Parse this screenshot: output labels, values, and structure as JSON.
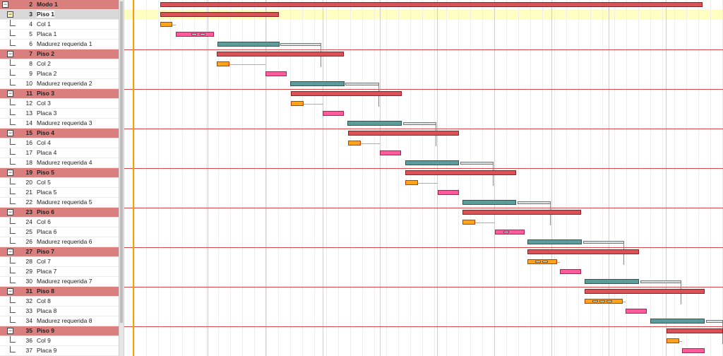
{
  "tasks": [
    {
      "id": "2",
      "name": "Modo 1",
      "type": "summary",
      "level": 0
    },
    {
      "id": "3",
      "name": "Piso 1",
      "type": "summary",
      "level": 1,
      "selected": true
    },
    {
      "id": "4",
      "name": "Col 1",
      "type": "col"
    },
    {
      "id": "5",
      "name": "Placa 1",
      "type": "placa"
    },
    {
      "id": "6",
      "name": "Madurez requerida 1",
      "type": "mad"
    },
    {
      "id": "7",
      "name": "Piso 2",
      "type": "summary",
      "level": 1
    },
    {
      "id": "8",
      "name": "Col 2",
      "type": "col"
    },
    {
      "id": "9",
      "name": "Placa 2",
      "type": "placa"
    },
    {
      "id": "10",
      "name": "Madurez requerida 2",
      "type": "mad"
    },
    {
      "id": "11",
      "name": "Piso 3",
      "type": "summary",
      "level": 1
    },
    {
      "id": "12",
      "name": "Col 3",
      "type": "col"
    },
    {
      "id": "13",
      "name": "Placa 3",
      "type": "placa"
    },
    {
      "id": "14",
      "name": "Madurez requerida 3",
      "type": "mad"
    },
    {
      "id": "15",
      "name": "Piso 4",
      "type": "summary",
      "level": 1
    },
    {
      "id": "16",
      "name": "Col 4",
      "type": "col"
    },
    {
      "id": "17",
      "name": "Placa 4",
      "type": "placa"
    },
    {
      "id": "18",
      "name": "Madurez requerida 4",
      "type": "mad"
    },
    {
      "id": "19",
      "name": "Piso 5",
      "type": "summary",
      "level": 1
    },
    {
      "id": "20",
      "name": "Col 5",
      "type": "col"
    },
    {
      "id": "21",
      "name": "Placa 5",
      "type": "placa"
    },
    {
      "id": "22",
      "name": "Madurez requerida 5",
      "type": "mad"
    },
    {
      "id": "23",
      "name": "Piso 6",
      "type": "summary",
      "level": 1
    },
    {
      "id": "24",
      "name": "Col 6",
      "type": "col"
    },
    {
      "id": "25",
      "name": "Placa 6",
      "type": "placa"
    },
    {
      "id": "26",
      "name": "Madurez requerida 6",
      "type": "mad"
    },
    {
      "id": "27",
      "name": "Piso 7",
      "type": "summary",
      "level": 1
    },
    {
      "id": "28",
      "name": "Col 7",
      "type": "col"
    },
    {
      "id": "29",
      "name": "Placa 7",
      "type": "placa"
    },
    {
      "id": "30",
      "name": "Madurez requerida 7",
      "type": "mad"
    },
    {
      "id": "31",
      "name": "Piso 8",
      "type": "summary",
      "level": 1
    },
    {
      "id": "32",
      "name": "Col 8",
      "type": "col"
    },
    {
      "id": "33",
      "name": "Placa 8",
      "type": "placa"
    },
    {
      "id": "34",
      "name": "Madurez requerida 8",
      "type": "mad"
    },
    {
      "id": "35",
      "name": "Piso 9",
      "type": "summary",
      "level": 1
    },
    {
      "id": "36",
      "name": "Col 9",
      "type": "col"
    },
    {
      "id": "37",
      "name": "Placa 9",
      "type": "placa"
    }
  ],
  "colors": {
    "summary_row": "#d9807f",
    "summary_bar": "#d85358",
    "col_bar": "#ffa320",
    "placa_bar": "#ff5c9c",
    "madurez_bar": "#5f9b9b",
    "today_line": "#f0a400",
    "highlight_row": "#ffffc4"
  },
  "icons": {
    "collapse": "minus-box-icon",
    "expand_glyph": "tree-toggle-icon"
  }
}
